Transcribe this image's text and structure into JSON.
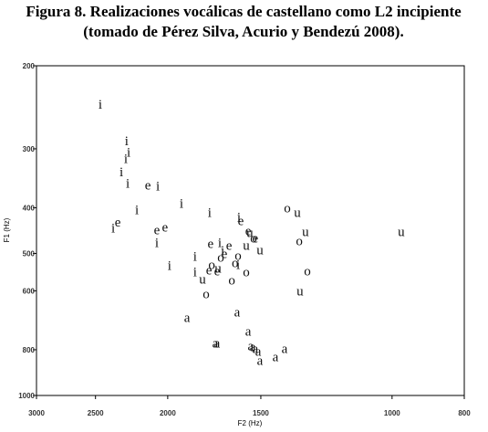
{
  "chart_data": {
    "type": "scatter",
    "title": [
      "Figura 8. Realizaciones vocálicas de castellano como L2 incipiente",
      "(tomado de Pérez Silva, Acurio y Bendezú 2008)."
    ],
    "x_label": "F2 (Hz)",
    "y_label": "F1 (Hz)",
    "xscale": "log",
    "yscale": "log",
    "xlim": [
      3000,
      800
    ],
    "ylim": [
      1000,
      200
    ],
    "xticks": [
      3000,
      2500,
      2000,
      1500,
      1000,
      800
    ],
    "yticks": [
      200,
      300,
      400,
      500,
      600,
      800,
      1000
    ],
    "color": "#111111",
    "labels": [
      "i",
      "i",
      "i",
      "i",
      "i",
      "i",
      "e",
      "i",
      "i",
      "i",
      "i",
      "e",
      "i",
      "e",
      "e",
      "i",
      "i",
      "i",
      "e",
      "i",
      "e",
      "i",
      "e",
      "i",
      "e",
      "u",
      "e",
      "o",
      "u",
      "u",
      "o",
      "u",
      "u",
      "o",
      "u",
      "o",
      "u",
      "i",
      "u",
      "e",
      "o",
      "e",
      "u",
      "o",
      "e",
      "o",
      "i",
      "o",
      "o",
      "o",
      "o",
      "a",
      "a",
      "a",
      "a",
      "a",
      "a",
      "a",
      "a",
      "a",
      "a",
      "a",
      "a"
    ],
    "x": [
      2463,
      2271,
      2256,
      2276,
      2308,
      2263,
      2127,
      2062,
      2200,
      1917,
      1757,
      2334,
      2367,
      2017,
      2068,
      2068,
      1989,
      1838,
      1752,
      1703,
      1655,
      1688,
      1596,
      1605,
      1560,
      1552,
      1526,
      1534,
      1569,
      1504,
      1382,
      1340,
      1307,
      1332,
      972,
      1299,
      1329,
      1838,
      1796,
      1761,
      1746,
      1717,
      1712,
      1698,
      1679,
      1624,
      1609,
      1609,
      1569,
      1641,
      1776,
      1884,
      1614,
      1727,
      1717,
      1560,
      1548,
      1538,
      1526,
      1512,
      1504,
      1434,
      1394
    ],
    "y": [
      243,
      290,
      307,
      317,
      338,
      357,
      360,
      362,
      406,
      394,
      412,
      432,
      444,
      442,
      448,
      477,
      533,
      510,
      479,
      477,
      484,
      496,
      429,
      421,
      450,
      454,
      467,
      467,
      484,
      494,
      403,
      412,
      452,
      473,
      452,
      548,
      604,
      550,
      570,
      545,
      531,
      548,
      541,
      512,
      503,
      526,
      531,
      508,
      550,
      573,
      612,
      688,
      669,
      779,
      779,
      735,
      790,
      793,
      800,
      811,
      848,
      833,
      800
    ]
  }
}
